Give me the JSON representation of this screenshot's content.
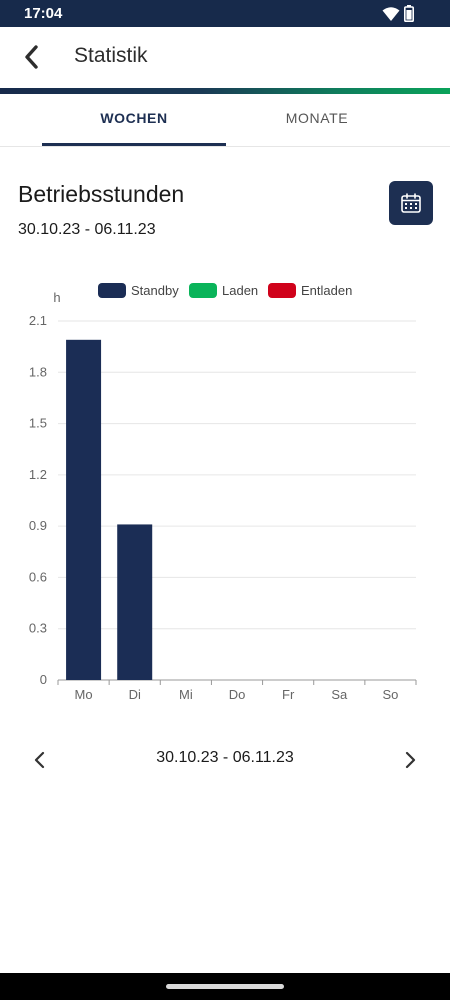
{
  "status_bar": {
    "time": "17:04"
  },
  "app_bar": {
    "title": "Statistik"
  },
  "tabs": [
    {
      "label": "WOCHEN",
      "selected": true
    },
    {
      "label": "MONATE",
      "selected": false
    }
  ],
  "section": {
    "title": "Betriebsstunden",
    "range": "30.10.23 - 06.11.23"
  },
  "pager": {
    "label": "30.10.23 - 06.11.23"
  },
  "colors": {
    "brand_navy": "#1d2f52",
    "standby": "#1b2d55",
    "laden": "#0ab45a",
    "entladen": "#d0021b"
  },
  "chart_data": {
    "type": "bar",
    "ylabel": "h",
    "categories": [
      "Mo",
      "Di",
      "Mi",
      "Do",
      "Fr",
      "Sa",
      "So"
    ],
    "series": [
      {
        "name": "Standby",
        "color": "#1b2d55",
        "values": [
          1.99,
          0.91,
          0,
          0,
          0,
          0,
          0
        ]
      },
      {
        "name": "Laden",
        "color": "#0ab45a",
        "values": [
          0,
          0,
          0,
          0,
          0,
          0,
          0
        ]
      },
      {
        "name": "Entladen",
        "color": "#d0021b",
        "values": [
          0,
          0,
          0,
          0,
          0,
          0,
          0
        ]
      }
    ],
    "yticks": [
      "0",
      "0.3",
      "0.6",
      "0.9",
      "1.2",
      "1.5",
      "1.8",
      "2.1"
    ],
    "ylim": [
      0,
      2.1
    ],
    "legend_position": "top",
    "grid": true
  }
}
